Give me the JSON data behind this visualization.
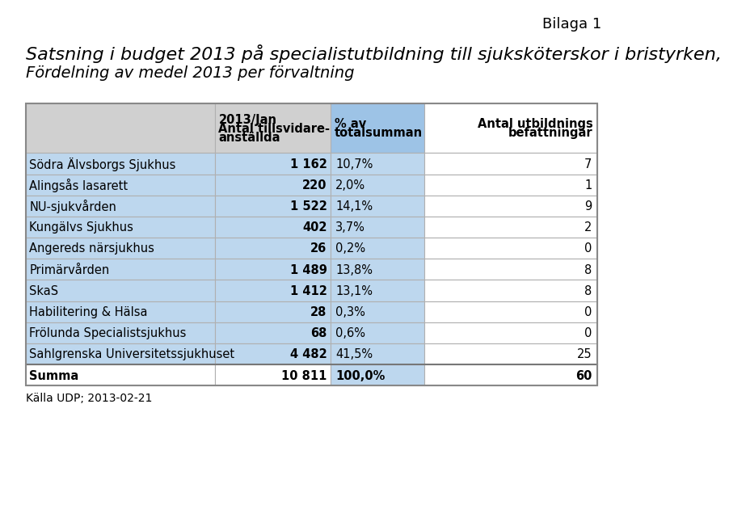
{
  "bilaga": "Bilaga 1",
  "title_line1": "Satsning i budget 2013 på specialistutbildning till sjuksköterskor i bristyrken,",
  "title_line2": "Fördelning av medel 2013 per förvaltning",
  "rows": [
    [
      "Södra Älvsborgs Sjukhus",
      "1 162",
      "10,7%",
      "7"
    ],
    [
      "Alingsås lasarett",
      "220",
      "2,0%",
      "1"
    ],
    [
      "NU-sjukvården",
      "1 522",
      "14,1%",
      "9"
    ],
    [
      "Kungälvs Sjukhus",
      "402",
      "3,7%",
      "2"
    ],
    [
      "Angereds närsjukhus",
      "26",
      "0,2%",
      "0"
    ],
    [
      "Primärvården",
      "1 489",
      "13,8%",
      "8"
    ],
    [
      "SkaS",
      "1 412",
      "13,1%",
      "8"
    ],
    [
      "Habilitering & Hälsa",
      "28",
      "0,3%",
      "0"
    ],
    [
      "Frölunda Specialistsjukhus",
      "68",
      "0,6%",
      "0"
    ],
    [
      "Sahlgrenska Universitetssjukhuset",
      "4 482",
      "41,5%",
      "25"
    ]
  ],
  "summary_row": [
    "Summa",
    "10 811",
    "100,0%",
    "60"
  ],
  "footer": "Källa UDP; 2013-02-21",
  "col_header_gray_bg": "#d0d0d0",
  "col_header_blue_bg": "#9dc3e6",
  "col_header_white_bg": "#ffffff",
  "row_blue_bg": "#bdd7ee",
  "row_white_bg": "#ffffff",
  "summary_top_border": "#888888",
  "border_color": "#b0b0b0",
  "text_color": "#000000",
  "header_fontsize": 10.5,
  "data_fontsize": 10.5,
  "title_fontsize": 16,
  "subtitle_fontsize": 14,
  "bilaga_fontsize": 13,
  "footer_fontsize": 10
}
